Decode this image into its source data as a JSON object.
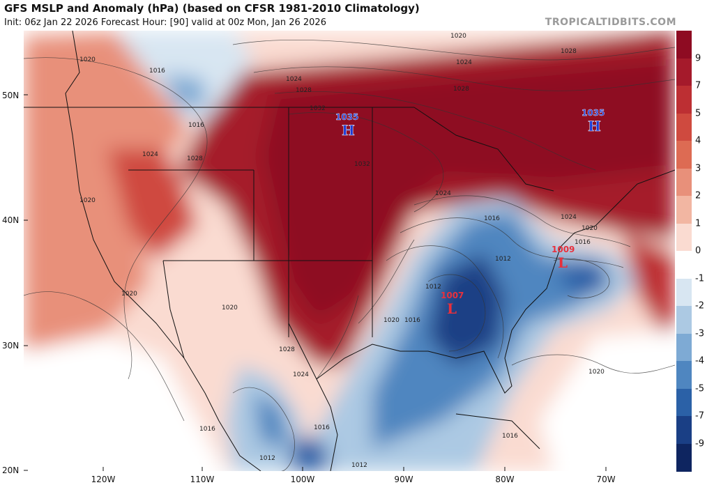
{
  "header": {
    "title": "GFS MSLP and Anomaly (hPa) (based on CFSR 1981-2010 Climatology)",
    "subtitle": "Init: 06z Jan 22 2026   Forecast Hour: [90]   valid at 00z Mon, Jan 26 2026",
    "brand": "TROPICALTIDBITS.COM"
  },
  "axes": {
    "lat_labels": [
      "50N",
      "40N",
      "30N",
      "20N"
    ],
    "lon_labels": [
      "120W",
      "110W",
      "100W",
      "90W",
      "80W",
      "70W"
    ]
  },
  "colorbar": {
    "labels": [
      "9",
      "7",
      "5",
      "4",
      "3",
      "2",
      "1",
      "0",
      "-1",
      "-2",
      "-3",
      "-4",
      "-5",
      "-7",
      "-9"
    ],
    "colors": [
      "#8e0b22",
      "#a51a2b",
      "#bd2f33",
      "#cf4a3f",
      "#dd6b53",
      "#e8907a",
      "#f2b6a2",
      "#fadbd1",
      "#ffffff",
      "#d8e6f2",
      "#acc9e3",
      "#7eaad4",
      "#4f86c0",
      "#2b61a7",
      "#1a3f85",
      "#0e2560"
    ]
  },
  "pressure_centers": [
    {
      "type": "H",
      "value": "1035",
      "color": "#1a3ad6"
    },
    {
      "type": "H",
      "value": "1035",
      "color": "#1a3ad6"
    },
    {
      "type": "L",
      "value": "1007",
      "color": "#e8303c"
    },
    {
      "type": "L",
      "value": "1009",
      "color": "#e8303c"
    }
  ],
  "isobar_labels": [
    "1020",
    "1016",
    "1016",
    "1020",
    "1024",
    "1024",
    "1028",
    "1028",
    "1032",
    "1032",
    "1028",
    "1024",
    "1028",
    "1020",
    "1024",
    "1016",
    "1020",
    "1024",
    "1020",
    "1016",
    "1012",
    "1016",
    "1020",
    "1024",
    "1028",
    "1020",
    "1016",
    "1016",
    "1012",
    "1012",
    "1016",
    "1020",
    "1012"
  ]
}
